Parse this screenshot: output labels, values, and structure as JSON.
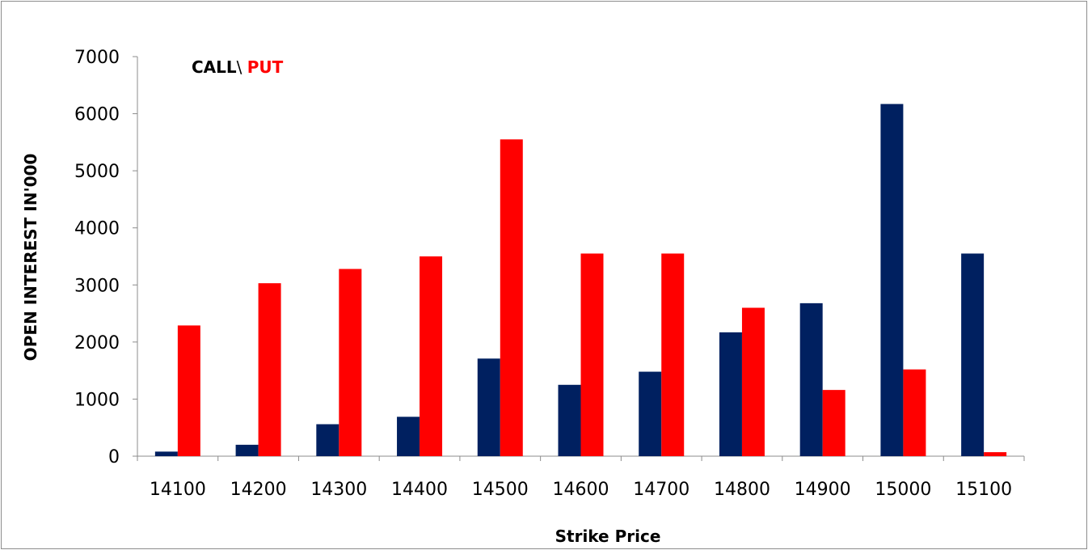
{
  "chart_data": {
    "type": "bar",
    "title": "",
    "xlabel": "Strike Price",
    "ylabel": "OPEN INTEREST IN'000",
    "ylim": [
      0,
      7000
    ],
    "yticks": [
      "0",
      "1000",
      "2000",
      "3000",
      "4000",
      "5000",
      "6000",
      "7000"
    ],
    "categories": [
      "14100",
      "14200",
      "14300",
      "14400",
      "14500",
      "14600",
      "14700",
      "14800",
      "14900",
      "15000",
      "15100"
    ],
    "series": [
      {
        "name": "CALL",
        "color": "#002060",
        "values": [
          80,
          200,
          560,
          690,
          1710,
          1250,
          1480,
          2170,
          2680,
          6170,
          3550
        ]
      },
      {
        "name": "PUT",
        "color": "#ff0000",
        "values": [
          2290,
          3030,
          3280,
          3500,
          5550,
          3550,
          3550,
          2600,
          1160,
          1520,
          70
        ]
      }
    ],
    "legend": {
      "call_label": "CALL",
      "separator": "\\ ",
      "put_label": "PUT",
      "call_color": "#000000",
      "put_color": "#ff0000",
      "position": "top-left"
    },
    "grid": false
  }
}
